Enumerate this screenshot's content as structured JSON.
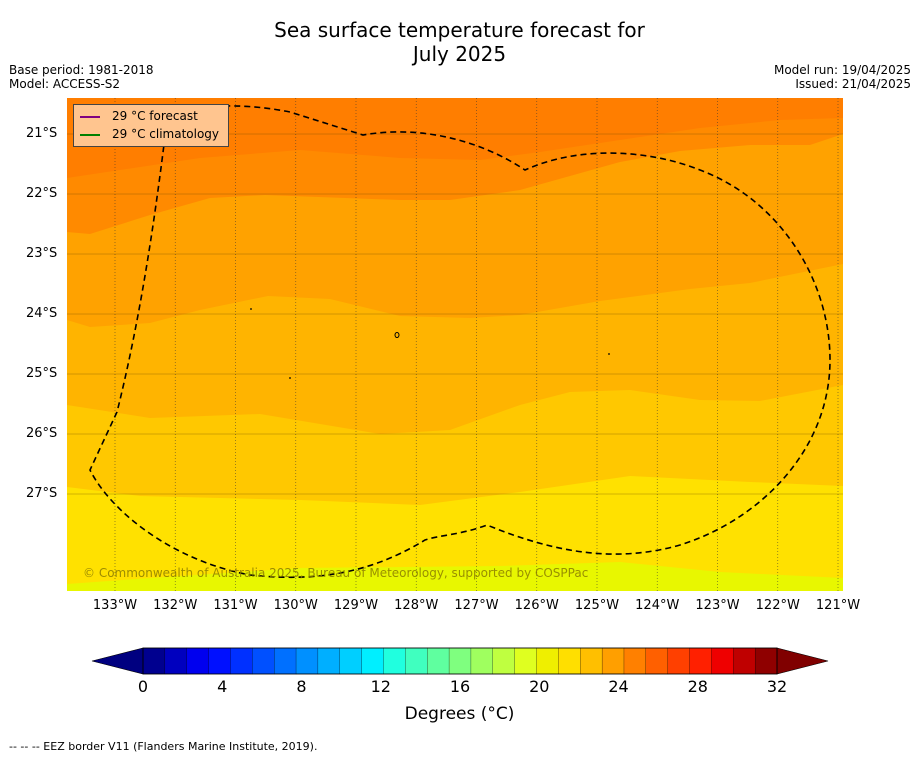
{
  "title_line1": "Sea surface temperature forecast for",
  "title_line2": "July 2025",
  "header": {
    "base_period": "Base period: 1981-2018",
    "model": "Model: ACCESS-S2",
    "model_run": "Model run: 19/04/2025",
    "issued": "Issued: 21/04/2025"
  },
  "legend": {
    "forecast": "29 °C  forecast",
    "forecast_color": "#800080",
    "climatology": "29 °C  climatology",
    "climatology_color": "#008000"
  },
  "map": {
    "lat_labels": [
      "21°S",
      "22°S",
      "23°S",
      "24°S",
      "25°S",
      "26°S",
      "27°S"
    ],
    "lon_labels": [
      "133°W",
      "132°W",
      "131°W",
      "130°W",
      "129°W",
      "128°W",
      "127°W",
      "126°W",
      "125°W",
      "124°W",
      "123°W",
      "122°W",
      "121°W"
    ],
    "copyright": "© Commonwealth of Australia 2025, Bureau of Meteorology, supported by COSPPac",
    "eez_style": "dashed black line"
  },
  "colorbar": {
    "tick_labels": [
      "0",
      "4",
      "8",
      "12",
      "16",
      "20",
      "24",
      "28",
      "32"
    ],
    "title": "Degrees (°C)",
    "colors": [
      "#00008f",
      "#0000bf",
      "#0000ef",
      "#0010ff",
      "#0030ff",
      "#0050ff",
      "#0070ff",
      "#0090ff",
      "#00afff",
      "#00cfff",
      "#00efff",
      "#20ffdf",
      "#40ffbf",
      "#5fff9f",
      "#7fff7f",
      "#9fff5f",
      "#bfff40",
      "#dfff20",
      "#efef00",
      "#ffdf00",
      "#ffbf00",
      "#ff9f00",
      "#ff8000",
      "#ff6000",
      "#ff4000",
      "#ff2000",
      "#ef0000",
      "#bf0000",
      "#8f0000"
    ],
    "under_color": "#000080",
    "over_color": "#800000"
  },
  "footnote": "--  --  -- EEZ border V11 (Flanders Marine Institute, 2019)."
}
